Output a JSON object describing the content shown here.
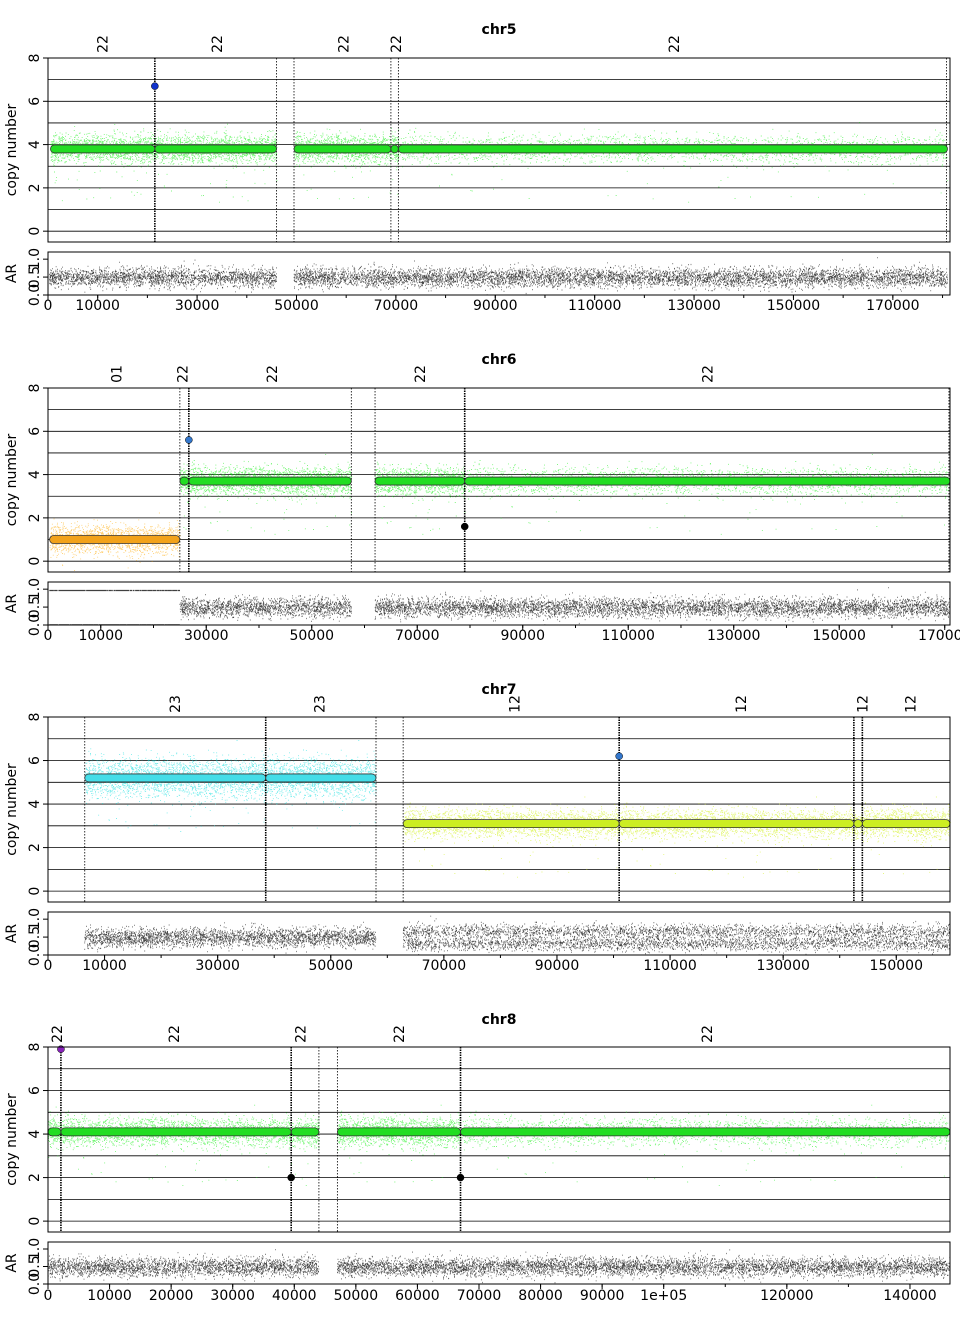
{
  "chart_data": [
    {
      "type": "scatter",
      "title": "chr5",
      "ylabel_top": "copy number",
      "ylabel_bottom": "AR",
      "xlim": [
        0,
        181500
      ],
      "ylim_top": [
        -0.5,
        8
      ],
      "ylim_bottom": [
        0,
        1.2
      ],
      "yticks_top": [
        "0",
        "2",
        "4",
        "6",
        "8"
      ],
      "yticks_bottom": [
        "0.0",
        "0.5",
        "1.0"
      ],
      "xticks": [
        {
          "v": 0,
          "l": "0"
        },
        {
          "v": 10000,
          "l": "10000"
        },
        {
          "v": 30000,
          "l": "30000"
        },
        {
          "v": 50000,
          "l": "50000"
        },
        {
          "v": 70000,
          "l": "70000"
        },
        {
          "v": 90000,
          "l": "90000"
        },
        {
          "v": 110000,
          "l": "110000"
        },
        {
          "v": 130000,
          "l": "130000"
        },
        {
          "v": 150000,
          "l": "150000"
        },
        {
          "v": 170000,
          "l": "170000"
        }
      ],
      "top_labels": [
        {
          "x": 11000,
          "l": "22"
        },
        {
          "x": 34000,
          "l": "22"
        },
        {
          "x": 59500,
          "l": "22"
        },
        {
          "x": 70000,
          "l": "22"
        },
        {
          "x": 126000,
          "l": "22"
        }
      ],
      "breakpoints": [
        {
          "x": 21500,
          "thick": true
        },
        {
          "x": 46000
        },
        {
          "x": 49500
        },
        {
          "x": 69000
        },
        {
          "x": 70500
        },
        {
          "x": 180800
        }
      ],
      "segments": [
        {
          "start": 500,
          "end": 21500,
          "cn": 3.8,
          "color": "#00ee00",
          "fill": "#22dd22"
        },
        {
          "start": 21500,
          "end": 46000,
          "cn": 3.8,
          "color": "#00ee00",
          "fill": "#22dd22"
        },
        {
          "start": 49500,
          "end": 69000,
          "cn": 3.8,
          "color": "#00ee00",
          "fill": "#22dd22"
        },
        {
          "start": 69000,
          "end": 70500,
          "cn": 3.8,
          "color": "#00ee00",
          "fill": "#22dd22"
        },
        {
          "start": 70500,
          "end": 181000,
          "cn": 3.8,
          "color": "#00ee00",
          "fill": "#22dd22"
        }
      ],
      "outliers": [
        {
          "x": 21500,
          "cn": 6.7,
          "color": "#1133cc"
        }
      ],
      "ar_regions": [
        {
          "start": 300,
          "end": 46000,
          "mode": "het"
        },
        {
          "start": 49500,
          "end": 181000,
          "mode": "het"
        }
      ]
    },
    {
      "type": "scatter",
      "title": "chr6",
      "ylabel_top": "copy number",
      "ylabel_bottom": "AR",
      "xlim": [
        0,
        171000
      ],
      "ylim_top": [
        -0.5,
        8
      ],
      "ylim_bottom": [
        0,
        1.2
      ],
      "yticks_top": [
        "0",
        "2",
        "4",
        "6",
        "8"
      ],
      "yticks_bottom": [
        "0.0",
        "0.5",
        "1.0"
      ],
      "xticks": [
        {
          "v": 0,
          "l": "0"
        },
        {
          "v": 10000,
          "l": "10000"
        },
        {
          "v": 30000,
          "l": "30000"
        },
        {
          "v": 50000,
          "l": "50000"
        },
        {
          "v": 70000,
          "l": "70000"
        },
        {
          "v": 90000,
          "l": "90000"
        },
        {
          "v": 110000,
          "l": "110000"
        },
        {
          "v": 130000,
          "l": "130000"
        },
        {
          "v": 150000,
          "l": "150000"
        },
        {
          "v": 170000,
          "l": "170000"
        }
      ],
      "top_labels": [
        {
          "x": 13000,
          "l": "01"
        },
        {
          "x": 25500,
          "l": "22"
        },
        {
          "x": 42500,
          "l": "22"
        },
        {
          "x": 70500,
          "l": "22"
        },
        {
          "x": 125000,
          "l": "22"
        }
      ],
      "breakpoints": [
        {
          "x": 25000
        },
        {
          "x": 26700,
          "thick": true
        },
        {
          "x": 57500
        },
        {
          "x": 62000
        },
        {
          "x": 79000,
          "thick": true
        },
        {
          "x": 170800
        }
      ],
      "segments": [
        {
          "start": 300,
          "end": 25000,
          "cn": 1.0,
          "color": "#ffaa00",
          "fill": "#f2a21a"
        },
        {
          "start": 25000,
          "end": 26700,
          "cn": 3.7,
          "color": "#00ee00",
          "fill": "#22dd22"
        },
        {
          "start": 26700,
          "end": 57500,
          "cn": 3.7,
          "color": "#00ee00",
          "fill": "#22dd22"
        },
        {
          "start": 62000,
          "end": 79000,
          "cn": 3.7,
          "color": "#00ee00",
          "fill": "#22dd22"
        },
        {
          "start": 79000,
          "end": 171000,
          "cn": 3.7,
          "color": "#00ee00",
          "fill": "#22dd22"
        }
      ],
      "outliers": [
        {
          "x": 26700,
          "cn": 5.6,
          "color": "#3377cc"
        },
        {
          "x": 79000,
          "cn": 1.6,
          "color": "#000000"
        }
      ],
      "ar_regions": [
        {
          "start": 300,
          "end": 25000,
          "mode": "loh"
        },
        {
          "start": 25000,
          "end": 57500,
          "mode": "het"
        },
        {
          "start": 62000,
          "end": 171000,
          "mode": "het"
        }
      ]
    },
    {
      "type": "scatter",
      "title": "chr7",
      "ylabel_top": "copy number",
      "ylabel_bottom": "AR",
      "xlim": [
        0,
        159500
      ],
      "ylim_top": [
        -0.5,
        8
      ],
      "ylim_bottom": [
        0,
        1.2
      ],
      "yticks_top": [
        "0",
        "2",
        "4",
        "6",
        "8"
      ],
      "yticks_bottom": [
        "0.0",
        "0.5",
        "1.0"
      ],
      "xticks": [
        {
          "v": 0,
          "l": "0"
        },
        {
          "v": 10000,
          "l": "10000"
        },
        {
          "v": 30000,
          "l": "30000"
        },
        {
          "v": 50000,
          "l": "50000"
        },
        {
          "v": 70000,
          "l": "70000"
        },
        {
          "v": 90000,
          "l": "90000"
        },
        {
          "v": 110000,
          "l": "110000"
        },
        {
          "v": 130000,
          "l": "130000"
        },
        {
          "v": 150000,
          "l": "150000"
        }
      ],
      "top_labels": [
        {
          "x": 22500,
          "l": "23"
        },
        {
          "x": 48000,
          "l": "23"
        },
        {
          "x": 82500,
          "l": "12"
        },
        {
          "x": 122500,
          "l": "12"
        },
        {
          "x": 144000,
          "l": "12"
        },
        {
          "x": 152500,
          "l": "12"
        }
      ],
      "breakpoints": [
        {
          "x": 6500
        },
        {
          "x": 38500,
          "thick": true
        },
        {
          "x": 58000
        },
        {
          "x": 62800
        },
        {
          "x": 101000,
          "thick": true
        },
        {
          "x": 142500,
          "thick": true
        },
        {
          "x": 144000,
          "thick": true
        }
      ],
      "segments": [
        {
          "start": 6500,
          "end": 38500,
          "cn": 5.2,
          "color": "#00dddd",
          "fill": "#44dde8"
        },
        {
          "start": 38500,
          "end": 58000,
          "cn": 5.2,
          "color": "#00dddd",
          "fill": "#44dde8"
        },
        {
          "start": 62800,
          "end": 101000,
          "cn": 3.1,
          "color": "#ccee00",
          "fill": "#ccee22"
        },
        {
          "start": 101000,
          "end": 142500,
          "cn": 3.1,
          "color": "#ccee00",
          "fill": "#ccee22"
        },
        {
          "start": 142500,
          "end": 144000,
          "cn": 3.1,
          "color": "#ccee00",
          "fill": "#ccee22"
        },
        {
          "start": 144000,
          "end": 159500,
          "cn": 3.1,
          "color": "#ccee00",
          "fill": "#ccee22"
        }
      ],
      "outliers": [
        {
          "x": 101000,
          "cn": 6.2,
          "color": "#3377cc"
        }
      ],
      "ar_regions": [
        {
          "start": 6500,
          "end": 58000,
          "mode": "het"
        },
        {
          "start": 62800,
          "end": 159500,
          "mode": "tri"
        }
      ]
    },
    {
      "type": "scatter",
      "title": "chr8",
      "ylabel_top": "copy number",
      "ylabel_bottom": "AR",
      "xlim": [
        0,
        146500
      ],
      "ylim_top": [
        -0.5,
        8
      ],
      "ylim_bottom": [
        0,
        1.2
      ],
      "yticks_top": [
        "0",
        "2",
        "4",
        "6",
        "8"
      ],
      "yticks_bottom": [
        "0.0",
        "0.5",
        "1.0"
      ],
      "xticks": [
        {
          "v": 0,
          "l": "0"
        },
        {
          "v": 10000,
          "l": "10000"
        },
        {
          "v": 20000,
          "l": "20000"
        },
        {
          "v": 30000,
          "l": "30000"
        },
        {
          "v": 40000,
          "l": "40000"
        },
        {
          "v": 50000,
          "l": "50000"
        },
        {
          "v": 60000,
          "l": "60000"
        },
        {
          "v": 70000,
          "l": "70000"
        },
        {
          "v": 80000,
          "l": "80000"
        },
        {
          "v": 90000,
          "l": "90000"
        },
        {
          "v": 100000,
          "l": "1e+05"
        },
        {
          "v": 120000,
          "l": "120000"
        },
        {
          "v": 140000,
          "l": "140000"
        }
      ],
      "top_labels": [
        {
          "x": 1500,
          "l": "22"
        },
        {
          "x": 20500,
          "l": "22"
        },
        {
          "x": 41000,
          "l": "22"
        },
        {
          "x": 57000,
          "l": "22"
        },
        {
          "x": 107000,
          "l": "22"
        }
      ],
      "breakpoints": [
        {
          "x": 2100,
          "thick": true
        },
        {
          "x": 39500,
          "thick": true
        },
        {
          "x": 44000
        },
        {
          "x": 47000
        },
        {
          "x": 67000,
          "thick": true
        }
      ],
      "segments": [
        {
          "start": 0,
          "end": 2100,
          "cn": 4.1,
          "color": "#00ee00",
          "fill": "#22dd22"
        },
        {
          "start": 2100,
          "end": 39500,
          "cn": 4.1,
          "color": "#00ee00",
          "fill": "#22dd22"
        },
        {
          "start": 39500,
          "end": 44000,
          "cn": 4.1,
          "color": "#00ee00",
          "fill": "#22dd22"
        },
        {
          "start": 47000,
          "end": 67000,
          "cn": 4.1,
          "color": "#00ee00",
          "fill": "#22dd22"
        },
        {
          "start": 67000,
          "end": 146500,
          "cn": 4.1,
          "color": "#00ee00",
          "fill": "#22dd22"
        }
      ],
      "outliers": [
        {
          "x": 2100,
          "cn": 7.9,
          "color": "#8822bb"
        },
        {
          "x": 39500,
          "cn": 2.0,
          "color": "#000000"
        },
        {
          "x": 67000,
          "cn": 2.0,
          "color": "#000000"
        }
      ],
      "ar_regions": [
        {
          "start": 0,
          "end": 44000,
          "mode": "het"
        },
        {
          "start": 47000,
          "end": 146500,
          "mode": "het"
        }
      ]
    }
  ]
}
